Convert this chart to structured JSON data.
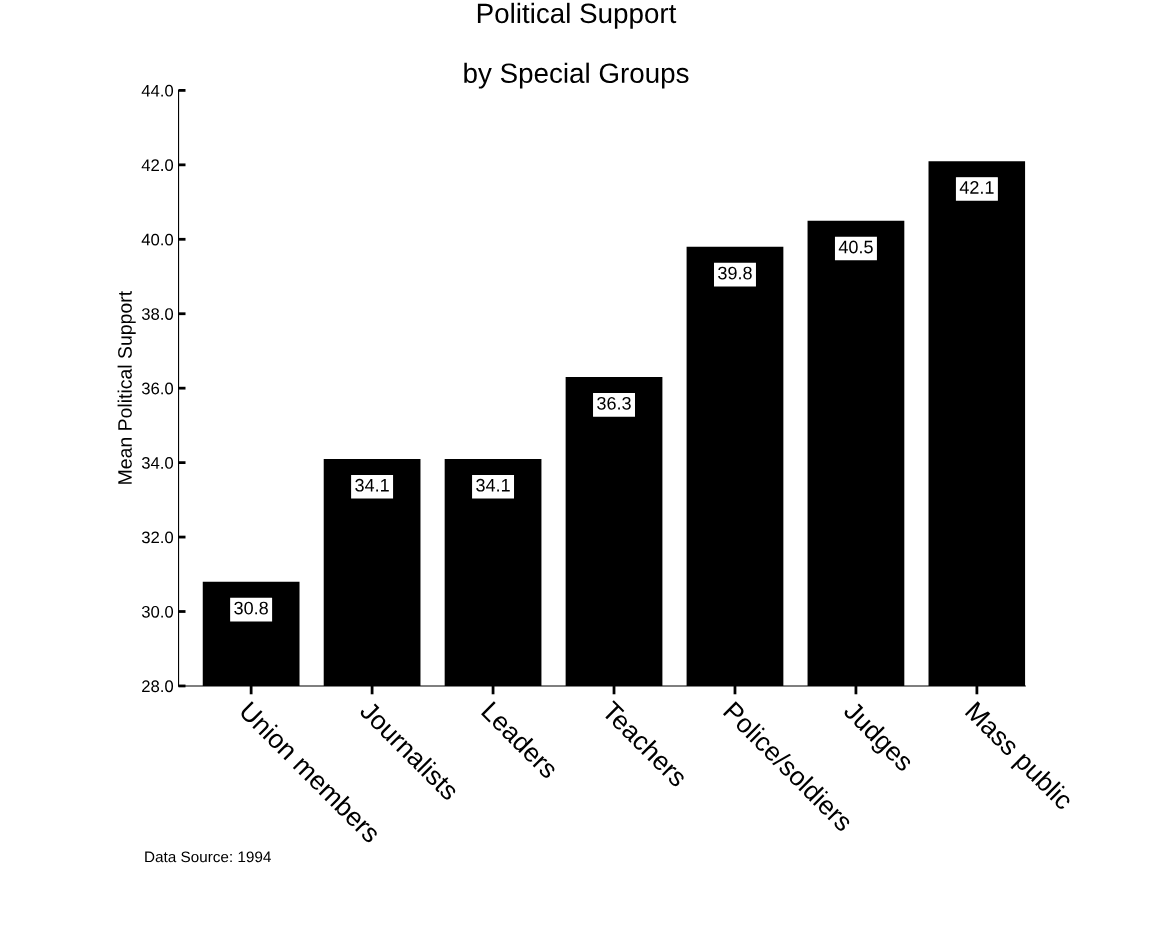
{
  "chart_data": {
    "type": "bar",
    "title": "Political Support\n\nby Special Groups",
    "ylabel": "Mean Political Support",
    "categories": [
      "Union members",
      "Journalists",
      "Leaders",
      "Teachers",
      "Police/soldiers",
      "Judges",
      "Mass public"
    ],
    "values": [
      30.8,
      34.1,
      34.1,
      36.3,
      39.8,
      40.5,
      42.1
    ],
    "color": "#000000",
    "data_labels": true,
    "ylim": [
      28,
      44
    ],
    "yticks": [
      {
        "value": 28,
        "label": "28.0"
      },
      {
        "value": 30,
        "label": "30.0"
      },
      {
        "value": 32,
        "label": "32.0"
      },
      {
        "value": 34,
        "label": "34.0"
      },
      {
        "value": 36,
        "label": "36.0"
      },
      {
        "value": 38,
        "label": "38.0"
      },
      {
        "value": 40,
        "label": "40.0"
      },
      {
        "value": 42,
        "label": "42.0"
      },
      {
        "value": 44,
        "label": "44.0"
      }
    ],
    "grid": false,
    "annotations": [
      "Data Source: 1994"
    ]
  }
}
